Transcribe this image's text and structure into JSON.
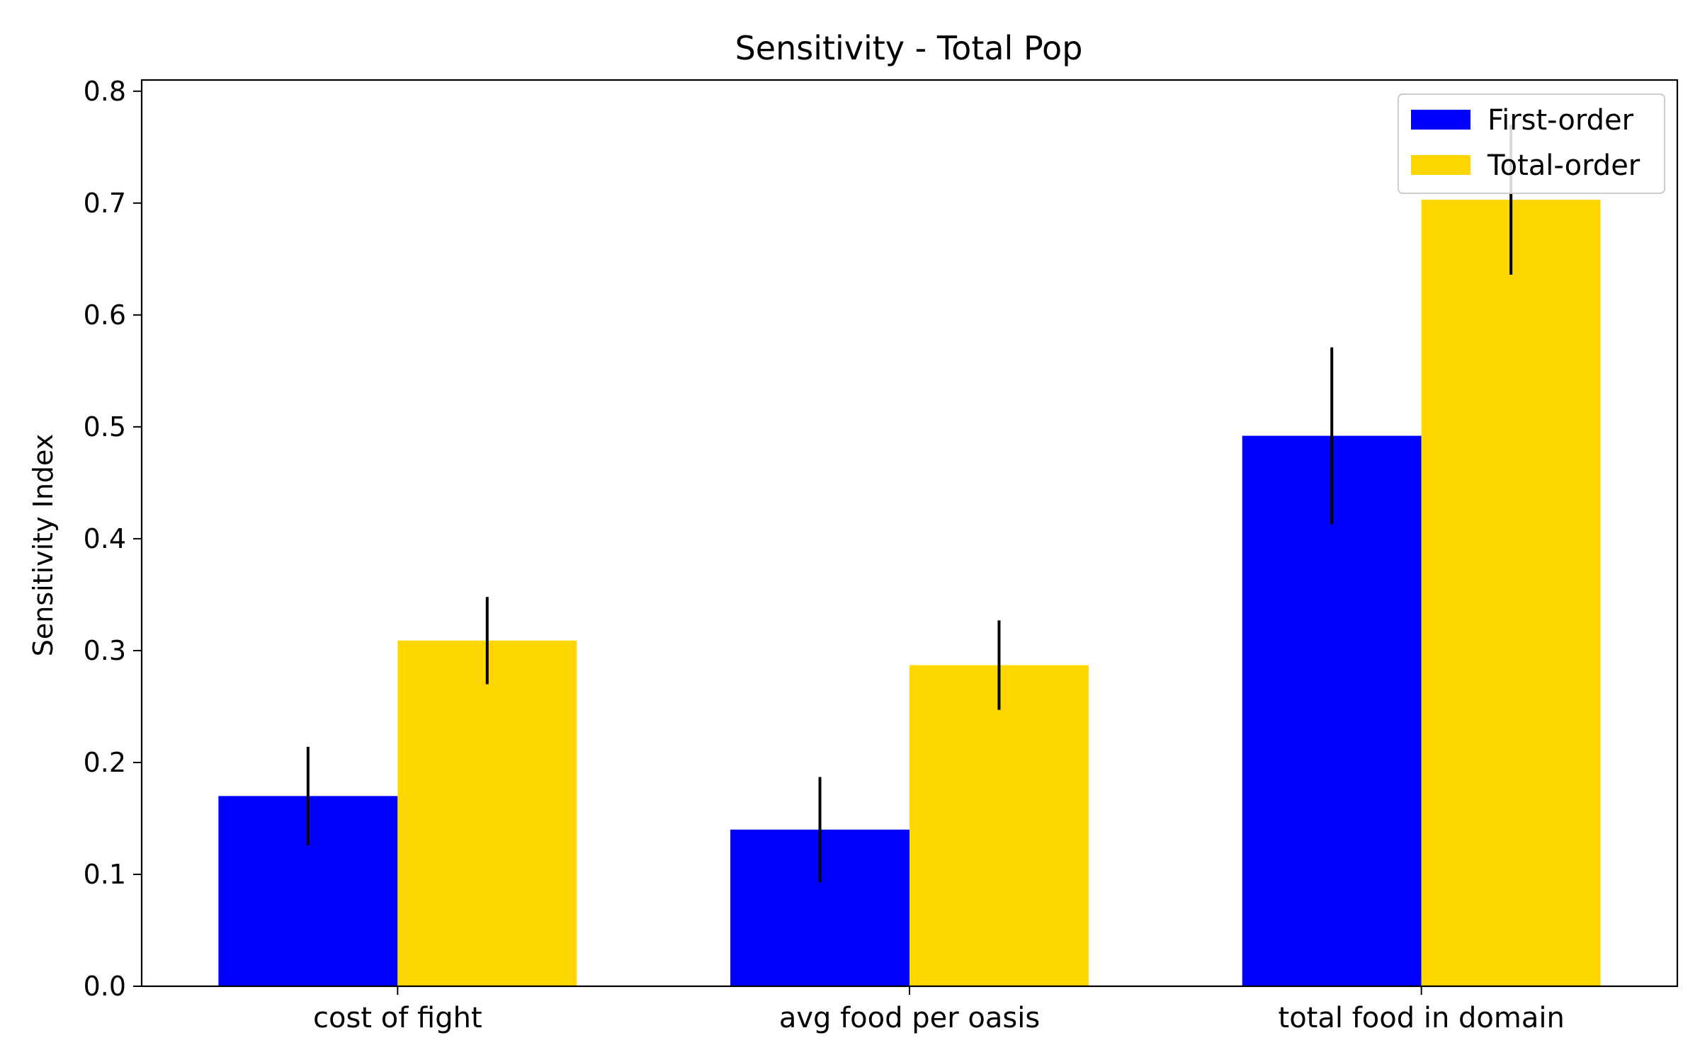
{
  "chart_data": {
    "type": "bar",
    "title": "Sensitivity - Total Pop",
    "xlabel": "",
    "ylabel": "Sensitivity Index",
    "categories": [
      "cost of fight",
      "avg food per oasis",
      "total food in domain"
    ],
    "ylim": [
      0,
      0.81
    ],
    "yticks": [
      0.0,
      0.1,
      0.2,
      0.3,
      0.4,
      0.5,
      0.6,
      0.7,
      0.8
    ],
    "ytick_labels": [
      "0.0",
      "0.1",
      "0.2",
      "0.3",
      "0.4",
      "0.5",
      "0.6",
      "0.7",
      "0.8"
    ],
    "grid": false,
    "legend_position": "top-right",
    "series": [
      {
        "name": "First-order",
        "color": "#0000ff",
        "values": [
          0.17,
          0.14,
          0.492
        ],
        "errors": [
          0.044,
          0.047,
          0.079
        ]
      },
      {
        "name": "Total-order",
        "color": "#ffd700",
        "values": [
          0.309,
          0.287,
          0.703
        ],
        "errors": [
          0.039,
          0.04,
          0.067
        ]
      }
    ]
  }
}
